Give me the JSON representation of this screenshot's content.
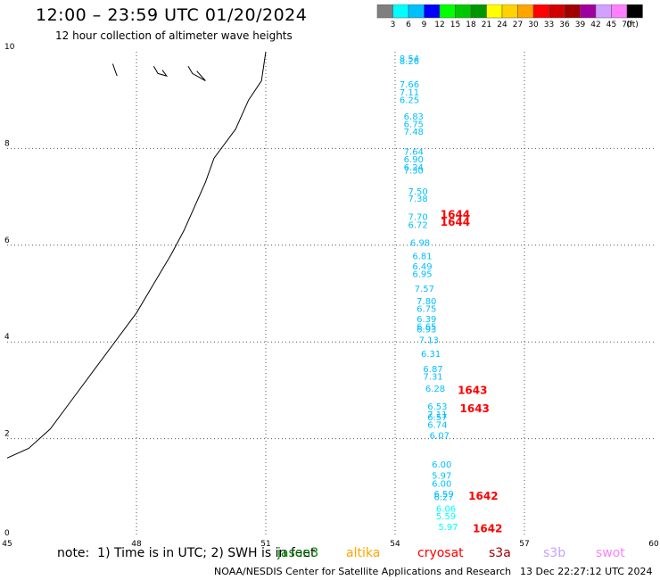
{
  "title": "12:00 – 23:59 UTC 01/20/2024",
  "subtitle": "12 hour collection of altimeter wave heights",
  "colorbar": {
    "unit": "(ft)",
    "ticks": [
      "3",
      "6",
      "9",
      "12",
      "15",
      "18",
      "21",
      "24",
      "27",
      "30",
      "33",
      "36",
      "39",
      "42",
      "45",
      "70"
    ],
    "colors": [
      "#7f7f7f",
      "#00ffff",
      "#00bfff",
      "#0000ff",
      "#00ff00",
      "#00c800",
      "#009600",
      "#ffff00",
      "#ffd200",
      "#ffa500",
      "#ff0000",
      "#d20000",
      "#a00000",
      "#a000a0",
      "#d2a0ff",
      "#ff80ff",
      "#000000"
    ]
  },
  "axes": {
    "x_ticks": [
      "45",
      "48",
      "51",
      "54",
      "57",
      "60"
    ],
    "y_ticks": [
      "0",
      "2",
      "4",
      "6",
      "8",
      "10"
    ],
    "xlim": [
      45,
      60
    ],
    "ylim": [
      0,
      10
    ]
  },
  "chart_data": {
    "type": "scatter",
    "x_range": [
      45,
      60
    ],
    "y_range": [
      0,
      10
    ],
    "wave_heights": [
      {
        "x": 54.1,
        "y": 9.8,
        "label": "8.54",
        "color": "#00bfff"
      },
      {
        "x": 54.1,
        "y": 9.74,
        "label": "8.26",
        "color": "#00bfff"
      },
      {
        "x": 54.1,
        "y": 9.26,
        "label": "7.66",
        "color": "#00bfff"
      },
      {
        "x": 54.1,
        "y": 9.1,
        "label": "7.11",
        "color": "#00bfff"
      },
      {
        "x": 54.1,
        "y": 8.94,
        "label": "6.25",
        "color": "#00bfff"
      },
      {
        "x": 54.2,
        "y": 8.6,
        "label": "6.83",
        "color": "#00bfff"
      },
      {
        "x": 54.2,
        "y": 8.44,
        "label": "6.75",
        "color": "#00bfff"
      },
      {
        "x": 54.2,
        "y": 8.28,
        "label": "7.48",
        "color": "#00bfff"
      },
      {
        "x": 54.2,
        "y": 7.87,
        "label": "7.64",
        "color": "#00bfff"
      },
      {
        "x": 54.2,
        "y": 7.71,
        "label": "6.90",
        "color": "#00bfff"
      },
      {
        "x": 54.2,
        "y": 7.55,
        "label": "6.24",
        "color": "#00bfff"
      },
      {
        "x": 54.2,
        "y": 7.48,
        "label": "7.30",
        "color": "#00bfff"
      },
      {
        "x": 54.3,
        "y": 7.05,
        "label": "7.50",
        "color": "#00bfff"
      },
      {
        "x": 54.3,
        "y": 6.9,
        "label": "7.38",
        "color": "#00bfff"
      },
      {
        "x": 54.3,
        "y": 6.52,
        "label": "7.70",
        "color": "#00bfff"
      },
      {
        "x": 54.3,
        "y": 6.36,
        "label": "6.72",
        "color": "#00bfff"
      },
      {
        "x": 54.35,
        "y": 5.99,
        "label": "6.98",
        "color": "#00bfff"
      },
      {
        "x": 54.4,
        "y": 5.71,
        "label": "6.81",
        "color": "#00bfff"
      },
      {
        "x": 54.4,
        "y": 5.5,
        "label": "6.49",
        "color": "#00bfff"
      },
      {
        "x": 54.4,
        "y": 5.34,
        "label": "6.95",
        "color": "#00bfff"
      },
      {
        "x": 54.45,
        "y": 5.04,
        "label": "7.57",
        "color": "#00bfff"
      },
      {
        "x": 54.5,
        "y": 4.78,
        "label": "7.80",
        "color": "#00bfff"
      },
      {
        "x": 54.5,
        "y": 4.62,
        "label": "6.75",
        "color": "#00bfff"
      },
      {
        "x": 54.5,
        "y": 4.41,
        "label": "6.39",
        "color": "#00bfff"
      },
      {
        "x": 54.5,
        "y": 4.25,
        "label": "6.65",
        "color": "#00bfff"
      },
      {
        "x": 54.5,
        "y": 4.2,
        "label": "6.93",
        "color": "#00bfff"
      },
      {
        "x": 54.55,
        "y": 3.98,
        "label": "7.13",
        "color": "#00bfff"
      },
      {
        "x": 54.6,
        "y": 3.69,
        "label": "6.31",
        "color": "#00bfff"
      },
      {
        "x": 54.65,
        "y": 3.38,
        "label": "6.87",
        "color": "#00bfff"
      },
      {
        "x": 54.65,
        "y": 3.22,
        "label": "7.31",
        "color": "#00bfff"
      },
      {
        "x": 54.7,
        "y": 2.97,
        "label": "6.28",
        "color": "#00bfff"
      },
      {
        "x": 54.75,
        "y": 2.6,
        "label": "6.53",
        "color": "#00bfff"
      },
      {
        "x": 54.75,
        "y": 2.44,
        "label": "7.11",
        "color": "#00bfff"
      },
      {
        "x": 54.75,
        "y": 2.38,
        "label": "6.57",
        "color": "#00bfff"
      },
      {
        "x": 54.75,
        "y": 2.22,
        "label": "6.74",
        "color": "#00bfff"
      },
      {
        "x": 54.8,
        "y": 2.0,
        "label": "6.07",
        "color": "#00bfff"
      },
      {
        "x": 54.85,
        "y": 1.4,
        "label": "6.00",
        "color": "#00bfff"
      },
      {
        "x": 54.85,
        "y": 1.17,
        "label": "5.97",
        "color": "#00bfff"
      },
      {
        "x": 54.85,
        "y": 1.01,
        "label": "6.00",
        "color": "#00bfff"
      },
      {
        "x": 54.9,
        "y": 0.79,
        "label": "6.59",
        "color": "#00bfff"
      },
      {
        "x": 54.9,
        "y": 0.73,
        "label": "6.27",
        "color": "#00bfff"
      },
      {
        "x": 54.95,
        "y": 0.49,
        "label": "6.06",
        "color": "#00ffff"
      },
      {
        "x": 54.95,
        "y": 0.33,
        "label": "5.59",
        "color": "#00ffff"
      },
      {
        "x": 55.0,
        "y": 0.11,
        "label": "5.97",
        "color": "#00ffff"
      }
    ],
    "pass_times": [
      {
        "x": 55.05,
        "y": 6.56,
        "label": "1644",
        "color": "#ff0000"
      },
      {
        "x": 55.05,
        "y": 6.4,
        "label": "1644",
        "color": "#ff0000"
      },
      {
        "x": 55.45,
        "y": 2.92,
        "label": "1643",
        "color": "#ff0000"
      },
      {
        "x": 55.5,
        "y": 2.55,
        "label": "1643",
        "color": "#ff0000"
      },
      {
        "x": 55.7,
        "y": 0.74,
        "label": "1642",
        "color": "#ff0000"
      },
      {
        "x": 55.8,
        "y": 0.06,
        "label": "1642",
        "color": "#ff0000"
      }
    ],
    "coastline": [
      [
        51,
        10
      ],
      [
        50.9,
        9.4
      ],
      [
        50.6,
        9.0
      ],
      [
        50.3,
        8.4
      ],
      [
        49.8,
        7.8
      ],
      [
        49.6,
        7.3
      ],
      [
        49.1,
        6.3
      ],
      [
        48.8,
        5.8
      ],
      [
        48.4,
        5.2
      ],
      [
        48.0,
        4.6
      ],
      [
        47.5,
        4.0
      ],
      [
        47.0,
        3.4
      ],
      [
        46.5,
        2.8
      ],
      [
        46.0,
        2.2
      ],
      [
        45.5,
        1.8
      ],
      [
        45,
        1.6
      ]
    ],
    "islands": [
      [
        [
          47.45,
          9.75
        ],
        [
          47.5,
          9.62
        ],
        [
          47.55,
          9.5
        ]
      ],
      [
        [
          48.4,
          9.7
        ],
        [
          48.5,
          9.55
        ],
        [
          48.7,
          9.5
        ],
        [
          48.6,
          9.62
        ]
      ],
      [
        [
          49.2,
          9.7
        ],
        [
          49.3,
          9.55
        ],
        [
          49.5,
          9.45
        ],
        [
          49.6,
          9.4
        ],
        [
          49.4,
          9.6
        ]
      ]
    ]
  },
  "note": "note:  1) Time is in UTC; 2) SWH is in feet",
  "legend": [
    {
      "name": "jason3",
      "color": "#008000"
    },
    {
      "name": "altika",
      "color": "#ffa500"
    },
    {
      "name": "cryosat",
      "color": "#ff0000"
    },
    {
      "name": "s3a",
      "color": "#a00000"
    },
    {
      "name": "s3b",
      "color": "#c8a0ff"
    },
    {
      "name": "swot",
      "color": "#ff80ff"
    }
  ],
  "credit": "NOAA/NESDIS Center for Satellite Applications and Research",
  "timestamp": "13 Dec 22:27:12 UTC 2024"
}
